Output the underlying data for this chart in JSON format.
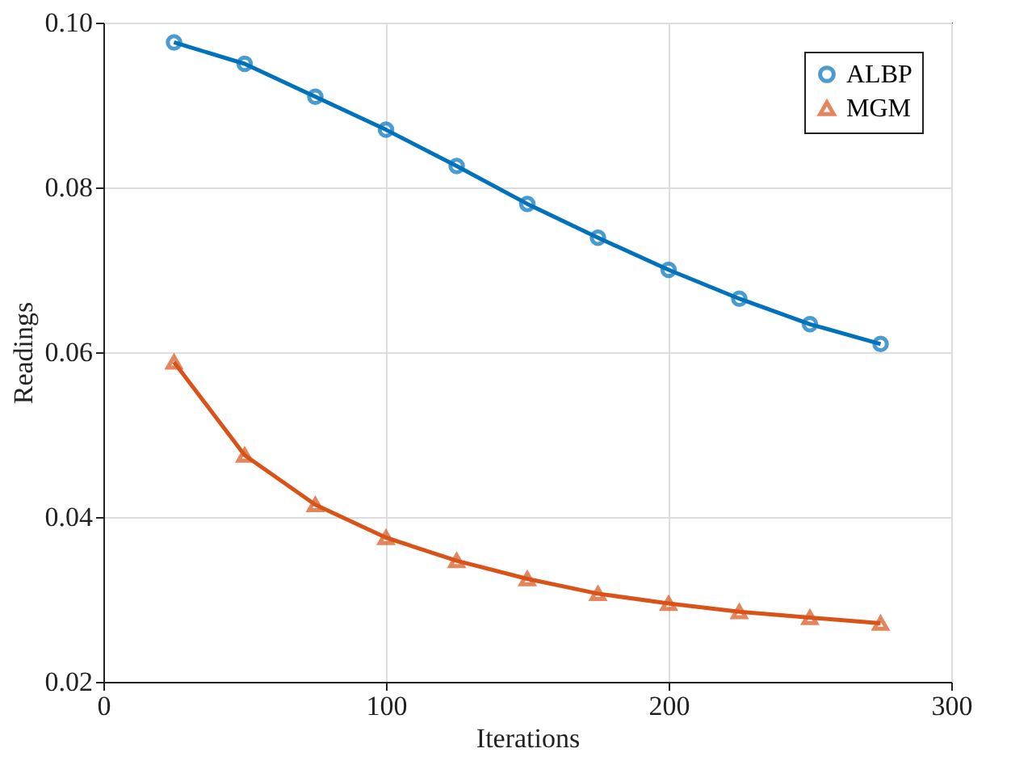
{
  "chart_data": {
    "type": "line",
    "xlabel": "Iterations",
    "ylabel": "Readings",
    "x": [
      25,
      50,
      75,
      100,
      125,
      150,
      175,
      200,
      225,
      250,
      275
    ],
    "series": [
      {
        "name": "ALBP",
        "color": "#0072bd",
        "marker": "circle",
        "values": [
          0.0976,
          0.095,
          0.091,
          0.087,
          0.0826,
          0.078,
          0.0739,
          0.07,
          0.0665,
          0.0634,
          0.061
        ]
      },
      {
        "name": "MGM",
        "color": "#d95319",
        "marker": "triangle",
        "values": [
          0.0588,
          0.0475,
          0.0415,
          0.0375,
          0.0347,
          0.0325,
          0.0307,
          0.0295,
          0.0285,
          0.0278,
          0.0271
        ]
      }
    ],
    "xlim": [
      0,
      300
    ],
    "xticks": [
      0,
      100,
      200,
      300
    ],
    "ylim": [
      0.02,
      0.1
    ],
    "yticks": [
      0.02,
      0.04,
      0.06,
      0.08,
      {
        "value": 0.1,
        "label": "0.10"
      }
    ],
    "grid": true,
    "legend": "top right",
    "line_style": "solid"
  }
}
